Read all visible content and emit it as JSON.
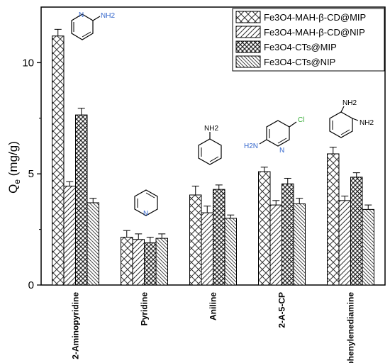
{
  "chart_data": {
    "type": "bar",
    "title": "",
    "xlabel": "",
    "ylabel_main": "Q",
    "ylabel_sub": "e",
    "ylabel_unit": " (mg/g)",
    "ylim": [
      0,
      12.5
    ],
    "yticks": [
      0,
      5,
      10
    ],
    "legend_position": "top-right",
    "categories": [
      "2-Aminopyridine",
      "Pyridine",
      "Aniline",
      "2-A-5-CP",
      "phenylenediamine"
    ],
    "series": [
      {
        "name": "Fe3O4-MAH-β-CD@MIP",
        "pattern": "crosshatch",
        "values": [
          11.2,
          2.15,
          4.05,
          5.1,
          5.9
        ],
        "errors": [
          0.3,
          0.3,
          0.4,
          0.2,
          0.3
        ]
      },
      {
        "name": "Fe3O4-MAH-β-CD@NIP",
        "pattern": "forward-diagonal",
        "values": [
          4.45,
          2.05,
          3.25,
          3.6,
          3.8
        ],
        "errors": [
          0.2,
          0.25,
          0.3,
          0.2,
          0.2
        ]
      },
      {
        "name": "Fe3O4-CTs@MIP",
        "pattern": "dense-crosshatch",
        "values": [
          7.65,
          1.9,
          4.3,
          4.55,
          4.85
        ],
        "errors": [
          0.3,
          0.25,
          0.2,
          0.25,
          0.2
        ]
      },
      {
        "name": "Fe3O4-CTs@NIP",
        "pattern": "back-diagonal",
        "values": [
          3.7,
          2.1,
          3.0,
          3.65,
          3.4
        ],
        "errors": [
          0.2,
          0.2,
          0.15,
          0.25,
          0.2
        ]
      }
    ],
    "annotations": [
      {
        "category": "2-Aminopyridine",
        "labels": [
          "N",
          "NH2"
        ]
      },
      {
        "category": "Aniline",
        "labels": [
          "NH2"
        ]
      },
      {
        "category": "2-A-5-CP",
        "labels": [
          "Cl",
          "H2N",
          "N"
        ]
      },
      {
        "category": "phenylenediamine",
        "labels": [
          "NH2",
          "NH2"
        ]
      },
      {
        "category": "Pyridine",
        "labels": [
          "N"
        ]
      }
    ]
  }
}
